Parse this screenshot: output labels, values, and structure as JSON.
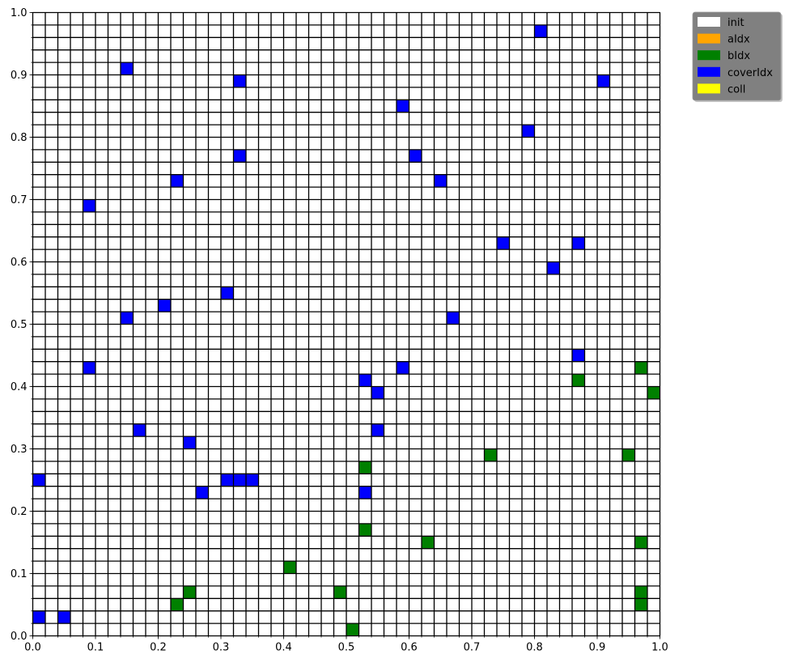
{
  "chart_data": {
    "type": "heatmap",
    "title": "",
    "xlabel": "",
    "ylabel": "",
    "xlim": [
      0,
      1
    ],
    "ylim": [
      0,
      1
    ],
    "grid_cells": 50,
    "cell_size": 0.02,
    "x_ticks": [
      "0.0",
      "0.1",
      "0.2",
      "0.3",
      "0.4",
      "0.5",
      "0.6",
      "0.7",
      "0.8",
      "0.9",
      "1.0"
    ],
    "y_ticks": [
      "0.0",
      "0.1",
      "0.2",
      "0.3",
      "0.4",
      "0.5",
      "0.6",
      "0.7",
      "0.8",
      "0.9",
      "1.0"
    ],
    "legend_position": "outside-top-right",
    "legend": [
      {
        "name": "init",
        "color": "#ffffff"
      },
      {
        "name": "aIdx",
        "color": "#ffa500"
      },
      {
        "name": "bIdx",
        "color": "#008000"
      },
      {
        "name": "coverIdx",
        "color": "#0000ff"
      },
      {
        "name": "coll",
        "color": "#ffff00"
      }
    ],
    "series": [
      {
        "name": "bIdx",
        "color": "#008000",
        "cells": [
          [
            0.97,
            0.43
          ],
          [
            0.87,
            0.41
          ],
          [
            0.99,
            0.39
          ],
          [
            0.73,
            0.29
          ],
          [
            0.95,
            0.29
          ],
          [
            0.53,
            0.27
          ],
          [
            0.53,
            0.17
          ],
          [
            0.63,
            0.15
          ],
          [
            0.97,
            0.15
          ],
          [
            0.41,
            0.11
          ],
          [
            0.25,
            0.07
          ],
          [
            0.49,
            0.07
          ],
          [
            0.97,
            0.07
          ],
          [
            0.23,
            0.05
          ],
          [
            0.97,
            0.05
          ],
          [
            0.51,
            0.01
          ]
        ]
      },
      {
        "name": "coverIdx",
        "color": "#0000ff",
        "cells": [
          [
            0.81,
            0.97
          ],
          [
            0.15,
            0.91
          ],
          [
            0.33,
            0.89
          ],
          [
            0.91,
            0.89
          ],
          [
            0.59,
            0.85
          ],
          [
            0.79,
            0.81
          ],
          [
            0.33,
            0.77
          ],
          [
            0.61,
            0.77
          ],
          [
            0.23,
            0.73
          ],
          [
            0.65,
            0.73
          ],
          [
            0.09,
            0.69
          ],
          [
            0.75,
            0.63
          ],
          [
            0.87,
            0.63
          ],
          [
            0.83,
            0.59
          ],
          [
            0.31,
            0.55
          ],
          [
            0.21,
            0.53
          ],
          [
            0.15,
            0.51
          ],
          [
            0.67,
            0.51
          ],
          [
            0.87,
            0.45
          ],
          [
            0.09,
            0.43
          ],
          [
            0.59,
            0.43
          ],
          [
            0.53,
            0.41
          ],
          [
            0.55,
            0.39
          ],
          [
            0.17,
            0.33
          ],
          [
            0.55,
            0.33
          ],
          [
            0.25,
            0.31
          ],
          [
            0.01,
            0.25
          ],
          [
            0.31,
            0.25
          ],
          [
            0.33,
            0.25
          ],
          [
            0.35,
            0.25
          ],
          [
            0.27,
            0.23
          ],
          [
            0.53,
            0.23
          ],
          [
            0.01,
            0.03
          ],
          [
            0.05,
            0.03
          ]
        ]
      }
    ]
  }
}
